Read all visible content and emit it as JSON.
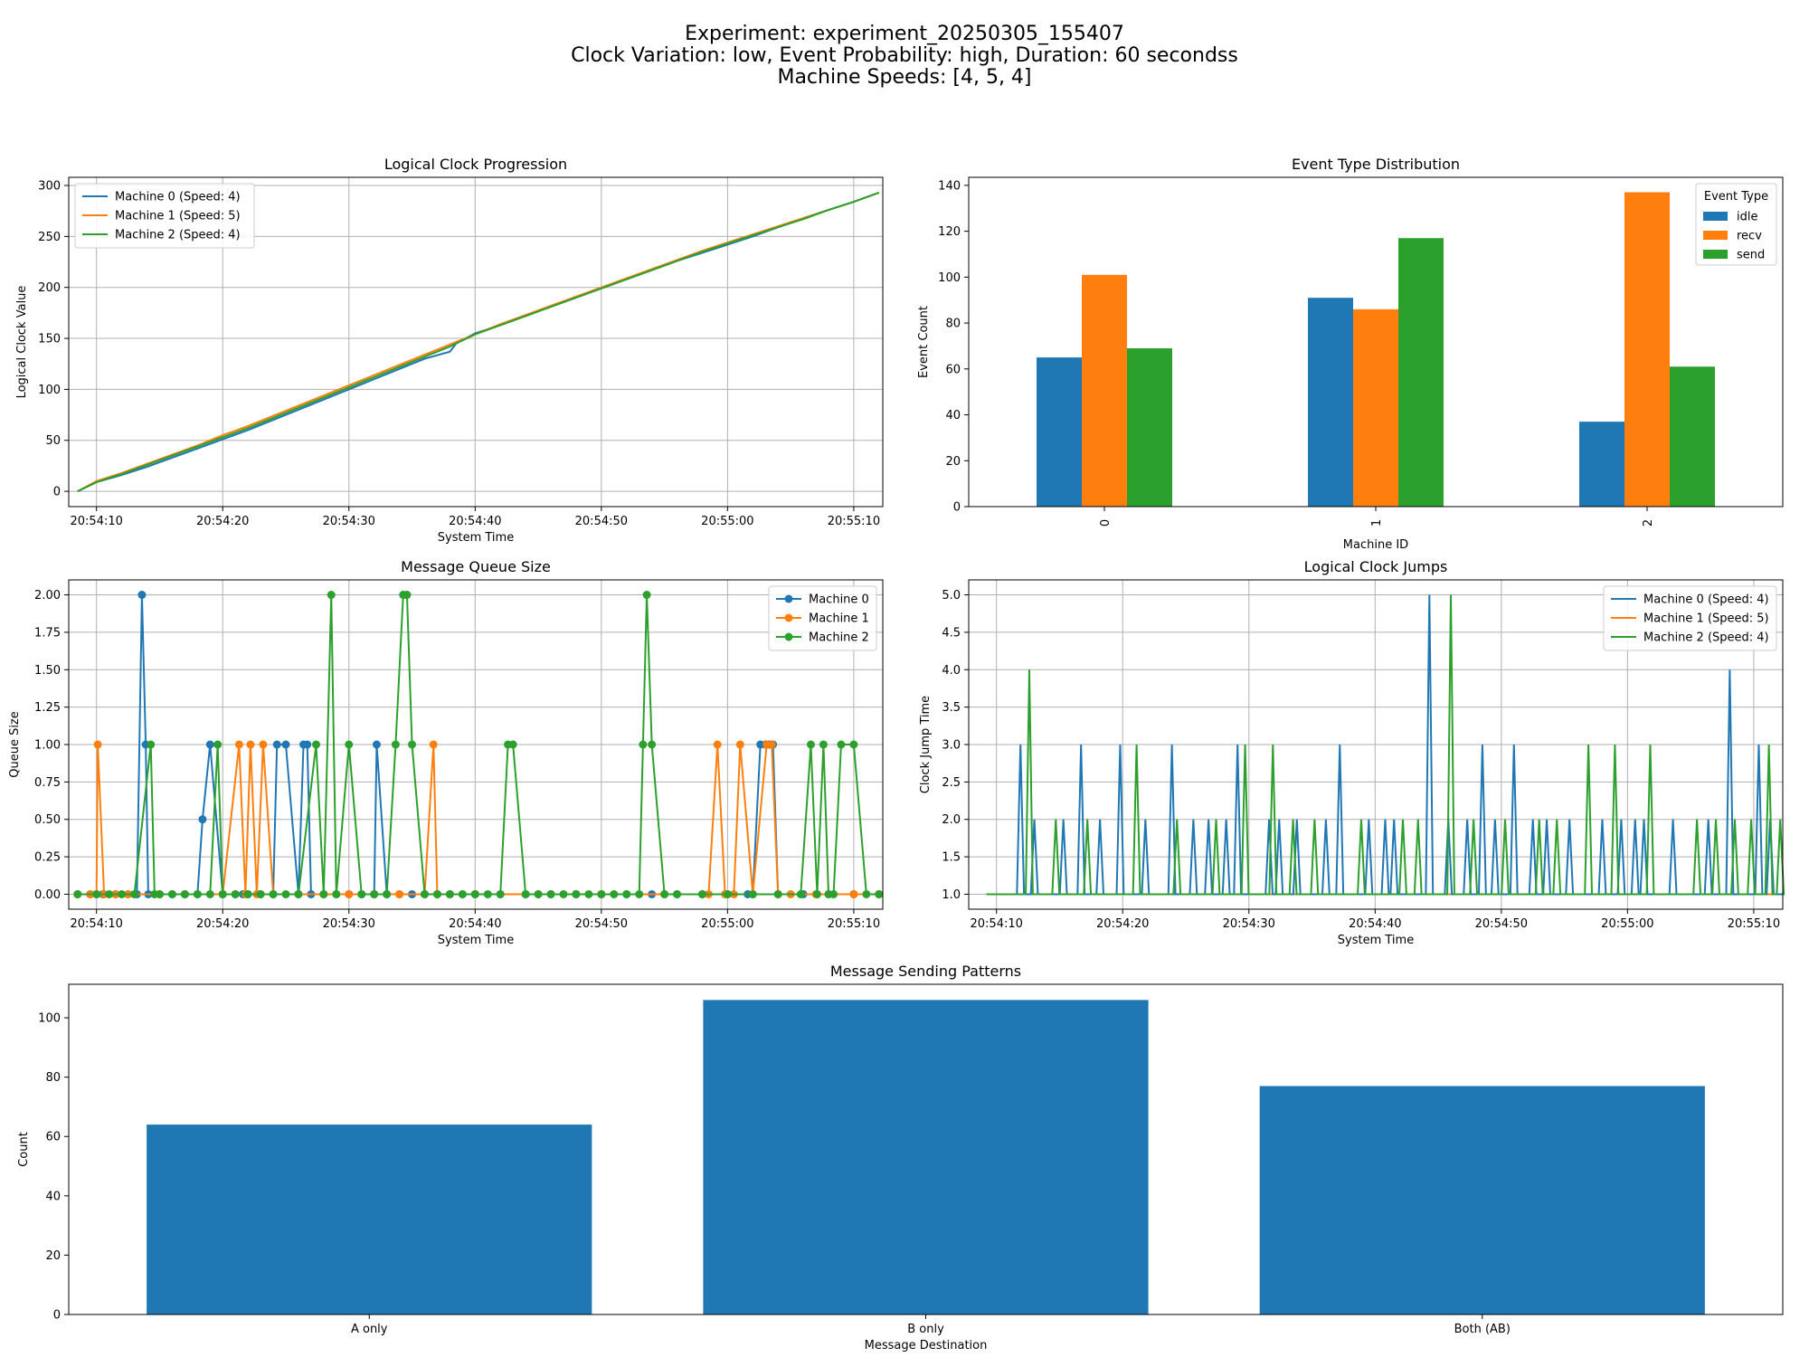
{
  "suptitle": {
    "line1": "Experiment: experiment_20250305_155407",
    "line2": "Clock Variation: low, Event Probability: high, Duration: 60 secondss",
    "line3": "Machine Speeds: [4, 5, 4]"
  },
  "colors": {
    "c0": "#1f77b4",
    "c1": "#ff7f0e",
    "c2": "#2ca02c",
    "grid": "#b0b0b0"
  },
  "chart_data": [
    {
      "type": "line",
      "title": "Logical Clock Progression",
      "xlabel": "System Time",
      "ylabel": "Logical Clock Value",
      "x_ticks": [
        "20:54:10",
        "20:54:20",
        "20:54:30",
        "20:54:40",
        "20:54:50",
        "20:55:00",
        "20:55:10"
      ],
      "y_ticks": [
        "0",
        "50",
        "100",
        "150",
        "200",
        "250",
        "300"
      ],
      "xlim_seconds_from_20_54_10": [
        -2.2,
        62.3
      ],
      "ylim": [
        -15,
        308
      ],
      "grid": true,
      "legend_position": "upper-left",
      "series": [
        {
          "name": "Machine 0 (Speed: 4)",
          "x_seconds_from_20_54_10": [
            -1.5,
            0,
            2,
            4,
            6,
            8,
            10,
            12,
            14,
            16,
            18,
            20,
            22,
            24,
            26,
            28,
            28.5,
            30,
            32,
            34,
            36,
            38,
            40,
            42,
            44,
            46,
            48,
            50,
            52,
            54,
            56,
            58,
            60,
            62,
            57.5
          ],
          "y": [
            0,
            9,
            16,
            24,
            33,
            42,
            51,
            60,
            70,
            80,
            90,
            100,
            110,
            120,
            130,
            137,
            145,
            155,
            163,
            172,
            181,
            190,
            199,
            208,
            217,
            226,
            234,
            242,
            250,
            259,
            268,
            276,
            284,
            293,
            293
          ]
        },
        {
          "name": "Machine 1 (Speed: 5)",
          "x_seconds_from_20_54_10": [
            -1.5,
            0,
            2,
            4,
            6,
            8,
            10,
            12,
            14,
            16,
            18,
            20,
            22,
            24,
            26,
            28,
            30,
            32,
            34,
            36,
            38,
            40,
            42,
            44,
            46,
            48,
            50,
            52,
            54,
            56,
            58,
            60,
            62,
            57.5
          ],
          "y": [
            0,
            10,
            18,
            27,
            36,
            45,
            55,
            64,
            74,
            84,
            94,
            104,
            114,
            124,
            134,
            144,
            154,
            164,
            173,
            182,
            191,
            200,
            209,
            218,
            227,
            236,
            244,
            252,
            260,
            268,
            276,
            284,
            293,
            293
          ]
        },
        {
          "name": "Machine 2 (Speed: 4)",
          "x_seconds_from_20_54_10": [
            -1.5,
            0,
            2,
            4,
            6,
            8,
            10,
            12,
            14,
            16,
            18,
            20,
            22,
            24,
            26,
            28,
            30,
            32,
            34,
            36,
            38,
            40,
            42,
            44,
            46,
            48,
            50,
            52,
            54,
            56,
            58,
            60,
            62,
            57.5
          ],
          "y": [
            0,
            9,
            17,
            26,
            35,
            44,
            53,
            62,
            72,
            82,
            92,
            102,
            112,
            122,
            132,
            142,
            154,
            163,
            172,
            181,
            190,
            199,
            208,
            217,
            226,
            235,
            243,
            251,
            259,
            267,
            276,
            284,
            293,
            293
          ]
        }
      ]
    },
    {
      "type": "bar",
      "title": "Event Type Distribution",
      "xlabel": "Machine ID",
      "ylabel": "Event Count",
      "categories": [
        "0",
        "1",
        "2"
      ],
      "y_ticks": [
        "0",
        "20",
        "40",
        "60",
        "80",
        "100",
        "120",
        "140"
      ],
      "ylim": [
        0,
        143.5
      ],
      "legend_title": "Event Type",
      "legend_position": "upper-right",
      "series": [
        {
          "name": "idle",
          "values": [
            65,
            91,
            37
          ]
        },
        {
          "name": "recv",
          "values": [
            101,
            86,
            137
          ]
        },
        {
          "name": "send",
          "values": [
            69,
            117,
            61
          ]
        }
      ]
    },
    {
      "type": "line",
      "title": "Message Queue Size",
      "xlabel": "System Time",
      "ylabel": "Queue Size",
      "x_ticks": [
        "20:54:10",
        "20:54:20",
        "20:54:30",
        "20:54:40",
        "20:54:50",
        "20:55:00",
        "20:55:10"
      ],
      "y_ticks": [
        "0.00",
        "0.25",
        "0.50",
        "0.75",
        "1.00",
        "1.25",
        "1.50",
        "1.75",
        "2.00"
      ],
      "xlim_seconds_from_20_54_10": [
        -2.2,
        62.3
      ],
      "ylim": [
        -0.1,
        2.1
      ],
      "grid": true,
      "legend_position": "upper-right",
      "markers": true,
      "series": [
        {
          "name": "Machine 0",
          "x_seconds_from_20_54_10": [
            -1.5,
            -0.5,
            0.5,
            1.5,
            2.5,
            3.2,
            3.6,
            3.9,
            4.1,
            5,
            6,
            7,
            8,
            8.4,
            9,
            10,
            11,
            11.6,
            12,
            13,
            14,
            14.3,
            15,
            16,
            16.4,
            16.7,
            17,
            18,
            19,
            20,
            21,
            22,
            22.2,
            23,
            24,
            25,
            26,
            27,
            28,
            29,
            30,
            32,
            34,
            36,
            38,
            40,
            42,
            44,
            46,
            48,
            50,
            51.6,
            52,
            52.6,
            53,
            53.3,
            53.6,
            54,
            56,
            58,
            60,
            62
          ],
          "y": [
            0,
            0,
            0,
            0,
            0,
            0,
            2,
            1,
            0,
            0,
            0,
            0,
            0,
            0.5,
            1,
            0,
            0,
            0,
            0,
            0,
            0,
            1,
            1,
            0,
            1,
            1,
            0,
            0,
            0,
            0,
            0,
            0,
            1,
            0,
            0,
            0,
            0,
            0,
            0,
            0,
            0,
            0,
            0,
            0,
            0,
            0,
            0,
            0,
            0,
            0,
            0,
            0,
            0,
            1,
            1,
            1,
            1,
            0,
            0,
            0,
            0,
            0
          ]
        },
        {
          "name": "Machine 1",
          "x_seconds_from_20_54_10": [
            -1.5,
            -0.5,
            0,
            0.1,
            0.6,
            1.5,
            2.5,
            5,
            10,
            11.3,
            11.8,
            12.2,
            12.7,
            13.2,
            14,
            16,
            18,
            20,
            22,
            24,
            26,
            26.7,
            27,
            28,
            30,
            35,
            40,
            45,
            48.5,
            49.2,
            49.8,
            50.5,
            51,
            52,
            53.1,
            53.5,
            54,
            55,
            57,
            60,
            62
          ],
          "y": [
            0,
            0,
            0,
            1,
            0,
            0,
            0,
            0,
            0,
            1,
            0,
            1,
            0,
            1,
            0,
            0,
            0,
            0,
            0,
            0,
            0,
            1,
            0,
            0,
            0,
            0,
            0,
            0,
            0,
            1,
            0,
            0,
            1,
            0,
            1,
            1,
            0,
            0,
            0,
            0,
            0
          ]
        },
        {
          "name": "Machine 2",
          "x_seconds_from_20_54_10": [
            -1.5,
            0,
            1,
            2,
            3,
            4.3,
            4.6,
            5,
            6,
            7,
            8,
            9,
            9.6,
            10,
            11,
            12,
            13,
            14,
            15,
            16,
            17.4,
            18,
            18.6,
            19,
            20,
            21,
            22,
            23,
            23.7,
            24.3,
            24.6,
            25,
            26,
            27,
            28,
            29,
            30,
            31,
            32,
            32.6,
            33,
            34,
            35,
            36,
            37,
            38,
            39,
            40,
            41,
            42,
            43,
            43.3,
            43.6,
            44,
            45,
            46,
            48,
            50,
            52,
            54,
            55.8,
            56.6,
            57.1,
            57.6,
            58,
            58.4,
            59,
            60,
            61,
            62
          ],
          "y": [
            0,
            0,
            0,
            0,
            0,
            1,
            0,
            0,
            0,
            0,
            0,
            0,
            1,
            0,
            0,
            0,
            0,
            0,
            0,
            0,
            1,
            0,
            2,
            0,
            1,
            0,
            0,
            0,
            1,
            2,
            2,
            1,
            0,
            0,
            0,
            0,
            0,
            0,
            0,
            1,
            1,
            0,
            0,
            0,
            0,
            0,
            0,
            0,
            0,
            0,
            0,
            1,
            2,
            1,
            0,
            0,
            0,
            0,
            0,
            0,
            0,
            1,
            0,
            1,
            0,
            0,
            1,
            1,
            0,
            0
          ]
        }
      ]
    },
    {
      "type": "line",
      "title": "Logical Clock Jumps",
      "xlabel": "System Time",
      "ylabel": "Clock Jump Time",
      "x_ticks": [
        "20:54:10",
        "20:54:20",
        "20:54:30",
        "20:54:40",
        "20:54:50",
        "20:55:00",
        "20:55:10"
      ],
      "y_ticks": [
        "1.0",
        "1.5",
        "2.0",
        "2.5",
        "3.0",
        "3.5",
        "4.0",
        "4.5",
        "5.0"
      ],
      "xlim_seconds_from_20_54_10": [
        -2.2,
        62.3
      ],
      "ylim": [
        0.8,
        5.2
      ],
      "grid": true,
      "legend_position": "upper-right",
      "series": [
        {
          "name": "Machine 0 (Speed: 4)",
          "spike_x_seconds_from_20_54_10": [
            1.9,
            3.0,
            5.3,
            6.7,
            8.2,
            9.8,
            11.8,
            13.9,
            15.6,
            16.8,
            18.2,
            19.1,
            21.6,
            22.4,
            23.8,
            26.1,
            27.2,
            29.5,
            30.8,
            31.5,
            34.3,
            35.8,
            37.3,
            38.5,
            39.5,
            41.0,
            42.5,
            43.6,
            45.4,
            48.0,
            49.5,
            50.6,
            51.3,
            53.6,
            56.4,
            58.1,
            60.4,
            61.3
          ],
          "spike_y": [
            3,
            2,
            2,
            3,
            2,
            3,
            2,
            3,
            2,
            2,
            2,
            3,
            2,
            2,
            2,
            2,
            3,
            2,
            2,
            2,
            5,
            2,
            2,
            3,
            2,
            3,
            2,
            2,
            2,
            2,
            2,
            2,
            2,
            2,
            2,
            4,
            3,
            2
          ],
          "baseline": 1,
          "x_range_seconds_from_20_54_10": [
            -0.8,
            62.3
          ]
        },
        {
          "name": "Machine 1 (Speed: 5)",
          "spike_x_seconds_from_20_54_10": [],
          "spike_y": [],
          "baseline": 1,
          "x_range_seconds_from_20_54_10": [
            -0.8,
            62.3
          ]
        },
        {
          "name": "Machine 2 (Speed: 4)",
          "spike_x_seconds_from_20_54_10": [
            2.6,
            4.7,
            7.2,
            11.1,
            14.3,
            17.4,
            19.7,
            21.9,
            23.5,
            25.2,
            28.9,
            32.2,
            33.4,
            36.0,
            37.8,
            40.3,
            43.0,
            44.4,
            46.9,
            49.0,
            51.8,
            55.5,
            57.0,
            58.5,
            59.8,
            61.2,
            62.1
          ],
          "spike_y": [
            4,
            2,
            2,
            3,
            2,
            2,
            3,
            3,
            2,
            2,
            2,
            2,
            2,
            5,
            2,
            2,
            2,
            2,
            3,
            3,
            3,
            2,
            2,
            2,
            2,
            3,
            2
          ],
          "baseline": 1,
          "x_range_seconds_from_20_54_10": [
            -0.8,
            62.3
          ]
        }
      ]
    },
    {
      "type": "bar",
      "title": "Message Sending Patterns",
      "xlabel": "Message Destination",
      "ylabel": "Count",
      "categories": [
        "A only",
        "B only",
        "Both (AB)"
      ],
      "values": [
        64,
        106,
        77
      ],
      "y_ticks": [
        "0",
        "20",
        "40",
        "60",
        "80",
        "100"
      ],
      "ylim": [
        0,
        111.3
      ]
    }
  ]
}
